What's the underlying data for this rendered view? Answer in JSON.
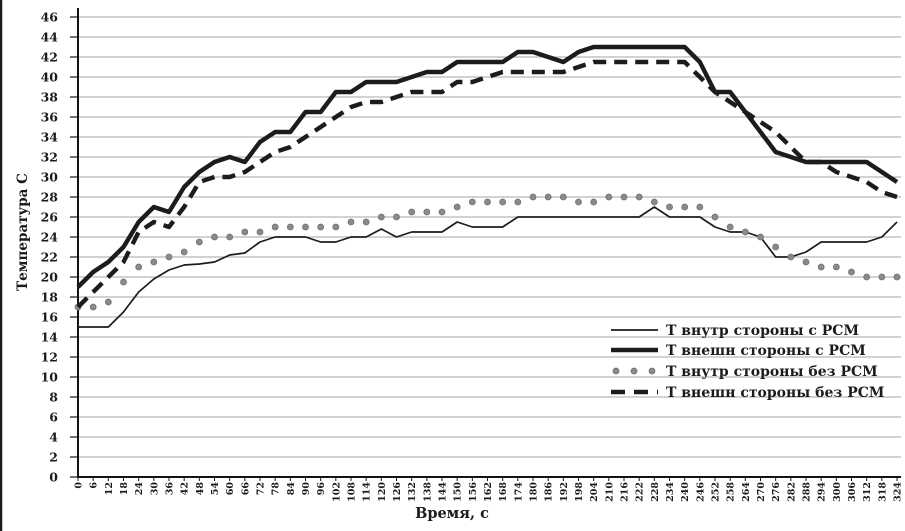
{
  "figure": {
    "background": "#ffffff",
    "scan_edge_color": "#1a1a1a",
    "grid_color": "#a6a6a6",
    "axis_color": "#141414"
  },
  "chart_data": {
    "type": "line",
    "title": "",
    "xlabel": "Время, с",
    "ylabel": "Температура С",
    "xlim": [
      0,
      324
    ],
    "ylim": [
      0,
      46
    ],
    "x_tick_step": 6,
    "y_tick_step": 2,
    "grid": "horizontal",
    "legend_position": "inside-bottom-right",
    "x": [
      0,
      6,
      12,
      18,
      24,
      30,
      36,
      42,
      48,
      54,
      60,
      66,
      72,
      78,
      84,
      90,
      96,
      102,
      108,
      114,
      120,
      126,
      132,
      138,
      144,
      150,
      156,
      162,
      168,
      174,
      180,
      186,
      192,
      198,
      204,
      210,
      216,
      222,
      228,
      234,
      240,
      246,
      252,
      258,
      264,
      270,
      276,
      282,
      288,
      294,
      300,
      306,
      312,
      318,
      324
    ],
    "series": [
      {
        "name": "Т  внутр стороны с РСМ",
        "line_style": "thin-solid",
        "color": "#1c1c1c",
        "values": [
          15,
          15,
          15,
          16.5,
          18.5,
          19.8,
          20.7,
          21.2,
          21.3,
          21.5,
          22.2,
          22.4,
          23.5,
          24,
          24,
          24,
          23.5,
          23.5,
          24,
          24,
          24.8,
          24,
          24.5,
          24.5,
          24.5,
          25.5,
          25,
          25,
          25,
          26,
          26,
          26,
          26,
          26,
          26,
          26,
          26,
          26,
          27,
          26,
          26,
          26,
          25,
          24.5,
          24.5,
          24,
          22,
          22,
          22.5,
          23.5,
          23.5,
          23.5,
          23.5,
          24,
          25.5
        ]
      },
      {
        "name": "Т внешн стороны с РСМ",
        "line_style": "thick-solid",
        "color": "#1c1c1c",
        "values": [
          19,
          20.5,
          21.5,
          23,
          25.5,
          27,
          26.5,
          29,
          30.5,
          31.5,
          32,
          31.5,
          33.5,
          34.5,
          34.5,
          36.5,
          36.5,
          38.5,
          38.5,
          39.5,
          39.5,
          39.5,
          40,
          40.5,
          40.5,
          41.5,
          41.5,
          41.5,
          41.5,
          42.5,
          42.5,
          42,
          41.5,
          42.5,
          43,
          43,
          43,
          43,
          43,
          43,
          43,
          41.5,
          38.5,
          38.5,
          36.5,
          34.5,
          32.5,
          32,
          31.5,
          31.5,
          31.5,
          31.5,
          31.5,
          30.5,
          29.5
        ]
      },
      {
        "name": "Т  внутр стороны без РСМ",
        "line_style": "dotted",
        "color": "#8a8a8a",
        "values": [
          17,
          17,
          17.5,
          19.5,
          21,
          21.5,
          22,
          22.5,
          23.5,
          24,
          24,
          24.5,
          24.5,
          25,
          25,
          25,
          25,
          25,
          25.5,
          25.5,
          26,
          26,
          26.5,
          26.5,
          26.5,
          27,
          27.5,
          27.5,
          27.5,
          27.5,
          28,
          28,
          28,
          27.5,
          27.5,
          28,
          28,
          28,
          27.5,
          27,
          27,
          27,
          26,
          25,
          24.5,
          24,
          23,
          22,
          21.5,
          21,
          21,
          20.5,
          20,
          20,
          20
        ]
      },
      {
        "name": "Т внешн стороны без РСМ",
        "line_style": "thick-dashed",
        "color": "#1c1c1c",
        "values": [
          17,
          18.5,
          20,
          21.5,
          24.5,
          25.5,
          25,
          27,
          29.5,
          30,
          30,
          30.5,
          31.5,
          32.5,
          33,
          34,
          35,
          36,
          37,
          37.5,
          37.5,
          38,
          38.5,
          38.5,
          38.5,
          39.5,
          39.5,
          40,
          40.5,
          40.5,
          40.5,
          40.5,
          40.5,
          41,
          41.5,
          41.5,
          41.5,
          41.5,
          41.5,
          41.5,
          41.5,
          40,
          38.5,
          37.5,
          36.5,
          35.5,
          34.5,
          33,
          31.5,
          31.5,
          30.5,
          30,
          29.5,
          28.5,
          28
        ]
      }
    ]
  }
}
